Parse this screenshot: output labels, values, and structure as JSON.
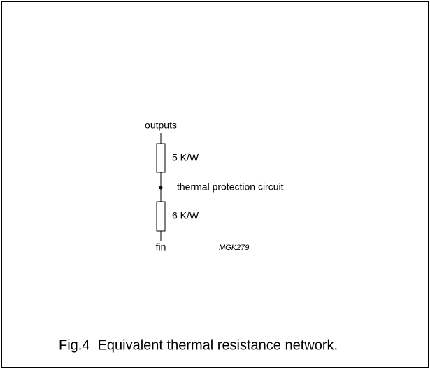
{
  "nodes": [
    {
      "label": "outputs"
    },
    {
      "label": "5 K/W"
    },
    {
      "label": "thermal protection circuit"
    },
    {
      "label": "6 K/W"
    },
    {
      "label": "fin"
    }
  ],
  "code": "MGK279",
  "caption": "Fig.4  Equivalent thermal resistance network."
}
